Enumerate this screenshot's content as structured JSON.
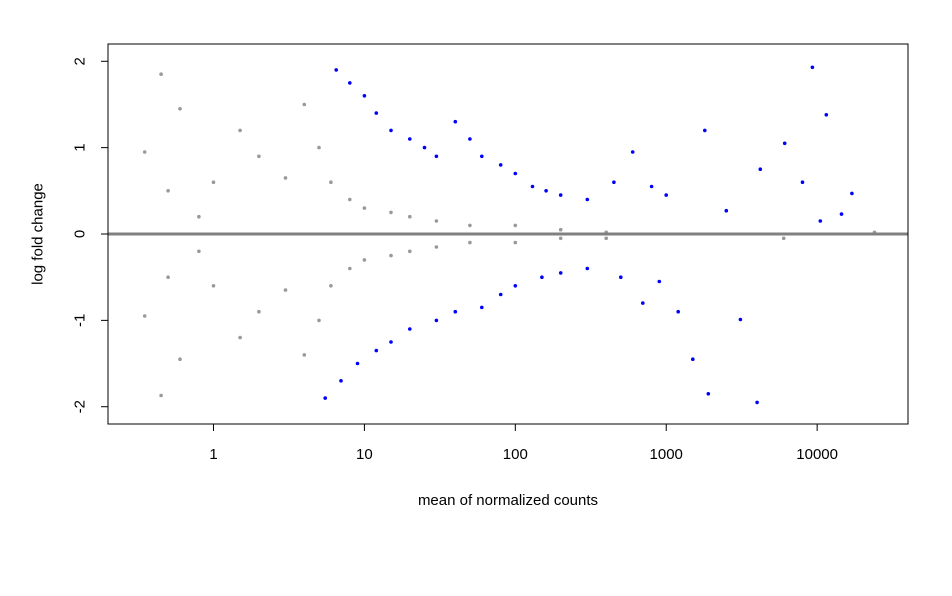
{
  "chart_data": {
    "type": "scatter",
    "plot_kind": "MA plot",
    "title": "",
    "xlabel": "mean of normalized counts",
    "ylabel": "log fold change",
    "x_scale": "log10",
    "xlim": [
      0.2,
      40000
    ],
    "ylim": [
      -2.2,
      2.2
    ],
    "x_ticks": [
      1,
      10,
      100,
      1000,
      10000
    ],
    "x_tick_labels": [
      "1",
      "10",
      "100",
      "1000",
      "10000"
    ],
    "y_ticks": [
      -2,
      -1,
      0,
      1,
      2
    ],
    "y_tick_labels": [
      "-2",
      "-1",
      "0",
      "1",
      "2"
    ],
    "reference_line": {
      "y": 0,
      "color": "#808080"
    },
    "grid": false,
    "legend": "none",
    "colors": {
      "not_significant": "#999999",
      "significant": "#0000FF"
    },
    "clipping": "points with |log fold change| > 2 are drawn as open triangles at +2 / -2",
    "series": [
      {
        "color": "#0000FF",
        "points": [
          [
            6.5,
            1.9
          ],
          [
            8,
            1.75
          ],
          [
            10,
            1.6
          ],
          [
            12,
            1.4
          ],
          [
            15,
            1.2
          ],
          [
            20,
            1.1
          ],
          [
            25,
            1.0
          ],
          [
            30,
            0.9
          ],
          [
            40,
            1.3
          ],
          [
            50,
            1.1
          ],
          [
            60,
            0.9
          ],
          [
            80,
            0.8
          ],
          [
            100,
            0.7
          ],
          [
            130,
            0.55
          ],
          [
            160,
            0.5
          ],
          [
            200,
            0.45
          ],
          [
            300,
            0.4
          ],
          [
            450,
            0.6
          ],
          [
            600,
            0.95
          ],
          [
            800,
            0.55
          ],
          [
            1000,
            0.45
          ],
          [
            1800,
            1.2
          ],
          [
            2500,
            0.27
          ],
          [
            4200,
            0.75
          ],
          [
            6100,
            1.05
          ],
          [
            8000,
            0.6
          ],
          [
            9300,
            1.93
          ],
          [
            10500,
            0.15
          ],
          [
            11500,
            1.38
          ],
          [
            14500,
            0.23
          ],
          [
            17000,
            0.47
          ],
          [
            5.5,
            -1.9
          ],
          [
            7,
            -1.7
          ],
          [
            9,
            -1.5
          ],
          [
            12,
            -1.35
          ],
          [
            15,
            -1.25
          ],
          [
            20,
            -1.1
          ],
          [
            30,
            -1.0
          ],
          [
            40,
            -0.9
          ],
          [
            60,
            -0.85
          ],
          [
            80,
            -0.7
          ],
          [
            100,
            -0.6
          ],
          [
            150,
            -0.5
          ],
          [
            200,
            -0.45
          ],
          [
            300,
            -0.4
          ],
          [
            500,
            -0.5
          ],
          [
            700,
            -0.8
          ],
          [
            900,
            -0.55
          ],
          [
            1200,
            -0.9
          ],
          [
            1500,
            -1.45
          ],
          [
            1900,
            -1.85
          ],
          [
            3100,
            -0.99
          ],
          [
            4000,
            -1.95
          ]
        ]
      },
      {
        "color": "#999999",
        "points": [
          [
            0.35,
            0.95
          ],
          [
            0.45,
            1.85
          ],
          [
            0.5,
            0.5
          ],
          [
            0.6,
            1.45
          ],
          [
            0.8,
            0.2
          ],
          [
            1,
            0.6
          ],
          [
            1.5,
            1.2
          ],
          [
            2,
            0.9
          ],
          [
            3,
            0.65
          ],
          [
            4,
            1.5
          ],
          [
            5,
            1.0
          ],
          [
            6,
            0.6
          ],
          [
            8,
            0.4
          ],
          [
            10,
            0.3
          ],
          [
            15,
            0.25
          ],
          [
            20,
            0.2
          ],
          [
            30,
            0.15
          ],
          [
            50,
            0.1
          ],
          [
            100,
            0.1
          ],
          [
            200,
            0.05
          ],
          [
            400,
            0.02
          ],
          [
            0.35,
            -0.95
          ],
          [
            0.45,
            -1.87
          ],
          [
            0.5,
            -0.5
          ],
          [
            0.6,
            -1.45
          ],
          [
            0.8,
            -0.2
          ],
          [
            1,
            -0.6
          ],
          [
            1.5,
            -1.2
          ],
          [
            2,
            -0.9
          ],
          [
            3,
            -0.65
          ],
          [
            4,
            -1.4
          ],
          [
            5,
            -1.0
          ],
          [
            6,
            -0.6
          ],
          [
            8,
            -0.4
          ],
          [
            10,
            -0.3
          ],
          [
            15,
            -0.25
          ],
          [
            20,
            -0.2
          ],
          [
            30,
            -0.15
          ],
          [
            50,
            -0.1
          ],
          [
            100,
            -0.1
          ],
          [
            200,
            -0.05
          ],
          [
            400,
            -0.05
          ],
          [
            6000,
            -0.05
          ],
          [
            24000,
            0.02
          ]
        ]
      }
    ]
  }
}
